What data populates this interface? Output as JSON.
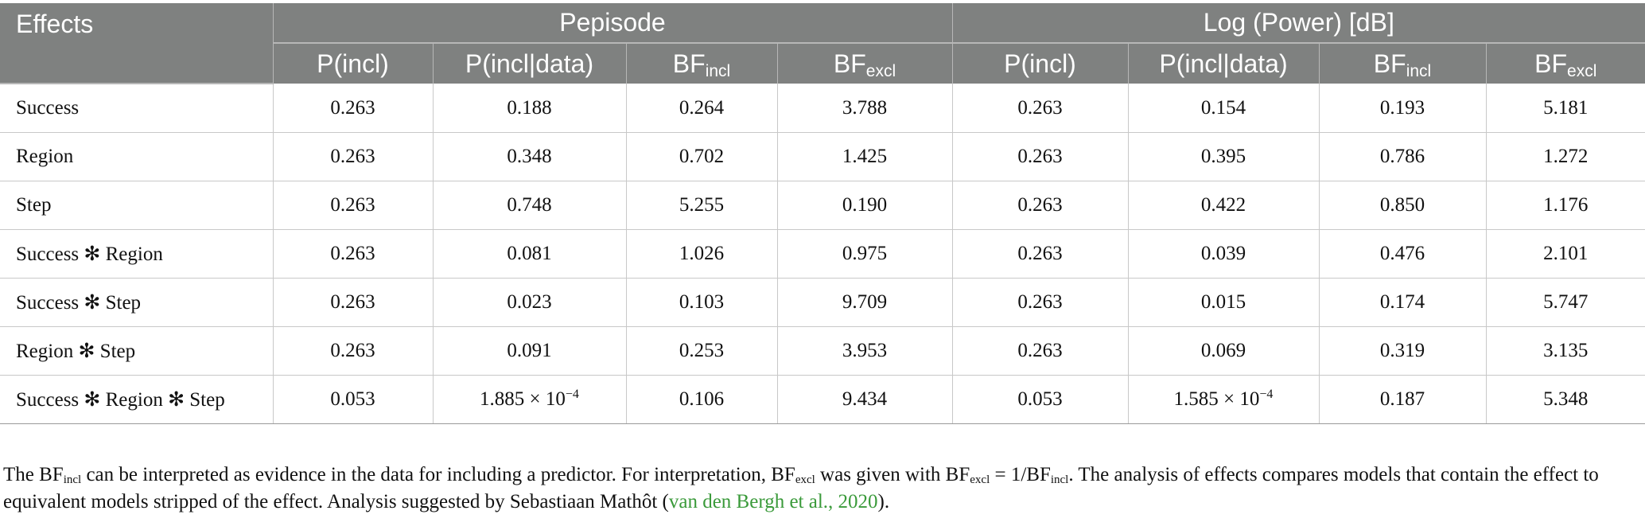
{
  "table": {
    "header": {
      "effects": "Effects",
      "groups": [
        "Pepisode",
        "Log (Power) [dB]"
      ],
      "p_incl": "P(incl)",
      "p_incl_data": "P(incl|data)",
      "bf": "BF",
      "incl_sub": "incl",
      "excl_sub": "excl"
    },
    "rows": [
      {
        "effect": "Success",
        "pep_p": "0.263",
        "pep_pd": "0.188",
        "pep_bfi": "0.264",
        "pep_bfe": "3.788",
        "log_p": "0.263",
        "log_pd": "0.154",
        "log_bfi": "0.193",
        "log_bfe": "5.181"
      },
      {
        "effect": "Region",
        "pep_p": "0.263",
        "pep_pd": "0.348",
        "pep_bfi": "0.702",
        "pep_bfe": "1.425",
        "log_p": "0.263",
        "log_pd": "0.395",
        "log_bfi": "0.786",
        "log_bfe": "1.272"
      },
      {
        "effect": "Step",
        "pep_p": "0.263",
        "pep_pd": "0.748",
        "pep_bfi": "5.255",
        "pep_bfe": "0.190",
        "log_p": "0.263",
        "log_pd": "0.422",
        "log_bfi": "0.850",
        "log_bfe": "1.176"
      },
      {
        "effect": "Success ✻ Region",
        "pep_p": "0.263",
        "pep_pd": "0.081",
        "pep_bfi": "1.026",
        "pep_bfe": "0.975",
        "log_p": "0.263",
        "log_pd": "0.039",
        "log_bfi": "0.476",
        "log_bfe": "2.101"
      },
      {
        "effect": "Success ✻ Step",
        "pep_p": "0.263",
        "pep_pd": "0.023",
        "pep_bfi": "0.103",
        "pep_bfe": "9.709",
        "log_p": "0.263",
        "log_pd": "0.015",
        "log_bfi": "0.174",
        "log_bfe": "5.747"
      },
      {
        "effect": "Region ✻ Step",
        "pep_p": "0.263",
        "pep_pd": "0.091",
        "pep_bfi": "0.253",
        "pep_bfe": "3.953",
        "log_p": "0.263",
        "log_pd": "0.069",
        "log_bfi": "0.319",
        "log_bfe": "3.135"
      },
      {
        "effect": "Success ✻ Region ✻ Step",
        "pep_p": "0.053",
        "pep_pd_base": "1.885 × 10",
        "pep_pd_exp": "−4",
        "pep_bfi": "0.106",
        "pep_bfe": "9.434",
        "log_p": "0.053",
        "log_pd_base": "1.585 × 10",
        "log_pd_exp": "−4",
        "log_bfi": "0.187",
        "log_bfe": "5.348"
      }
    ]
  },
  "note": {
    "t1": "The BF",
    "s1": "incl",
    "t2": " can be interpreted as evidence in the data for including a predictor. For interpretation, BF",
    "s2": "excl",
    "t3": " was given with BF",
    "s3": "excl",
    "t4": " = 1/BF",
    "s4": "incl",
    "t5": ". The analysis of effects compares models that contain the effect to equivalent models stripped of the effect. Analysis suggested by Sebastiaan Mathôt (",
    "citation": "van den Bergh et al., 2020",
    "t6": ")."
  }
}
